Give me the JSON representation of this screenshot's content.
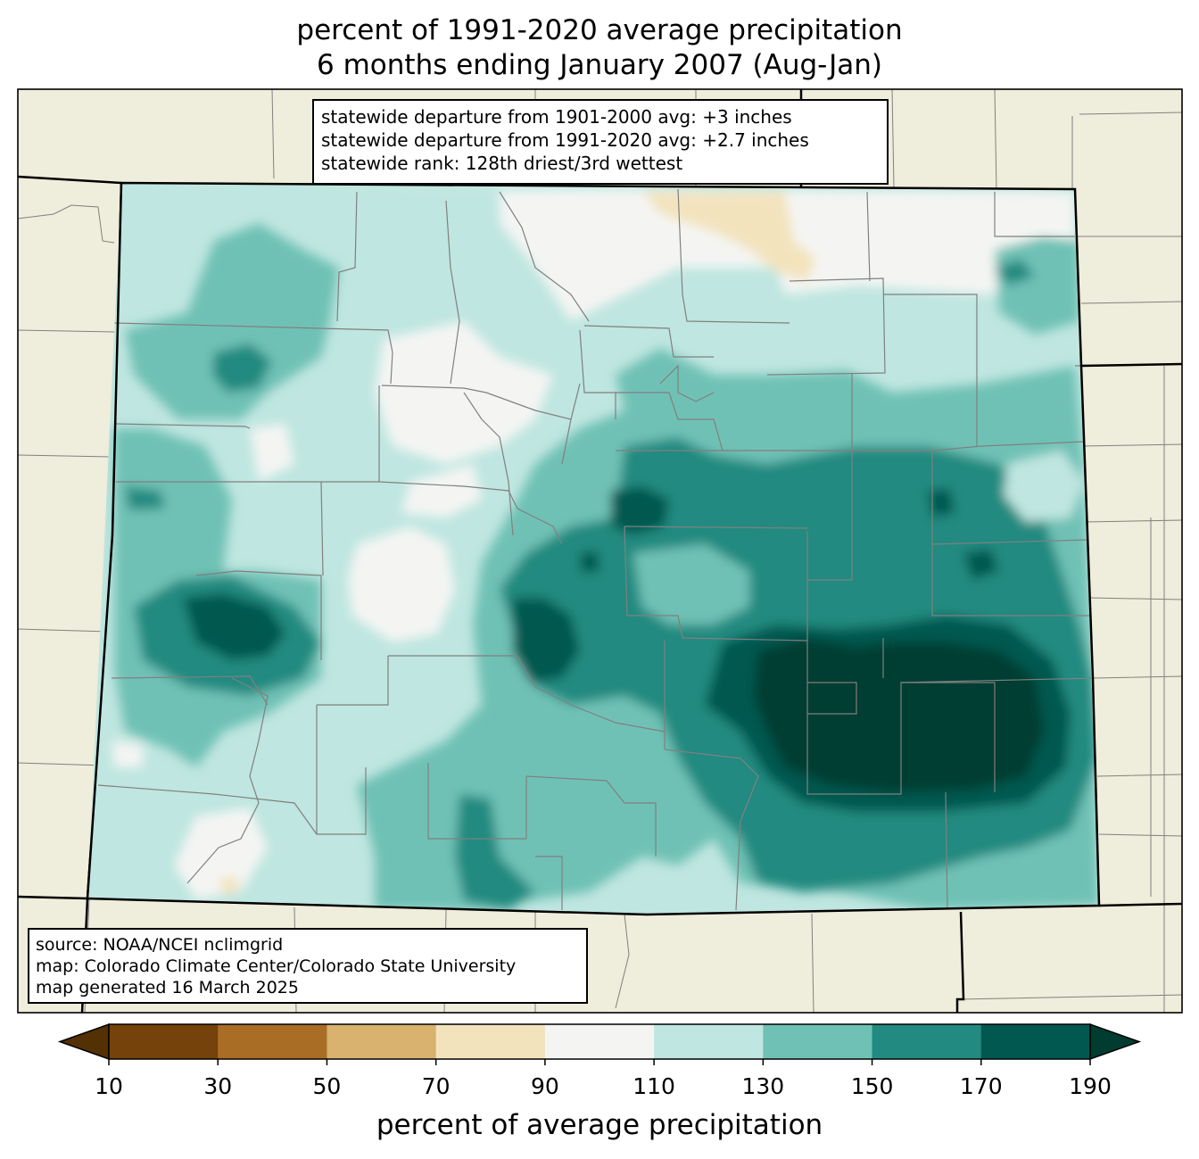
{
  "title_line1": "percent of 1991-2020 average precipitation",
  "title_line2": "6 months ending January 2007 (Aug-Jan)",
  "stats": [
    "statewide departure from 1901-2000 avg: +3 inches",
    "statewide departure from 1991-2020 avg: +2.7 inches",
    "statewide rank: 128th driest/3rd wettest"
  ],
  "source": [
    "source: NOAA/NCEI nclimgrid",
    "map: Colorado Climate Center/Colorado State University",
    "map generated 16 March 2025"
  ],
  "colorbar": {
    "label": "percent of average precipitation",
    "ticks": [
      "10",
      "30",
      "50",
      "70",
      "90",
      "110",
      "130",
      "150",
      "170",
      "190"
    ],
    "colors": [
      "#74420a",
      "#a96d25",
      "#d8b26e",
      "#f3e3bd",
      "#f4f5f3",
      "#bfe6e0",
      "#6fc1b5",
      "#228a80",
      "#005850"
    ],
    "under_color": "#543005",
    "over_color": "#003c30"
  },
  "map_colors": {
    "outside": "#efeddb",
    "state_border": "#000000",
    "county_lines": "#808080"
  }
}
